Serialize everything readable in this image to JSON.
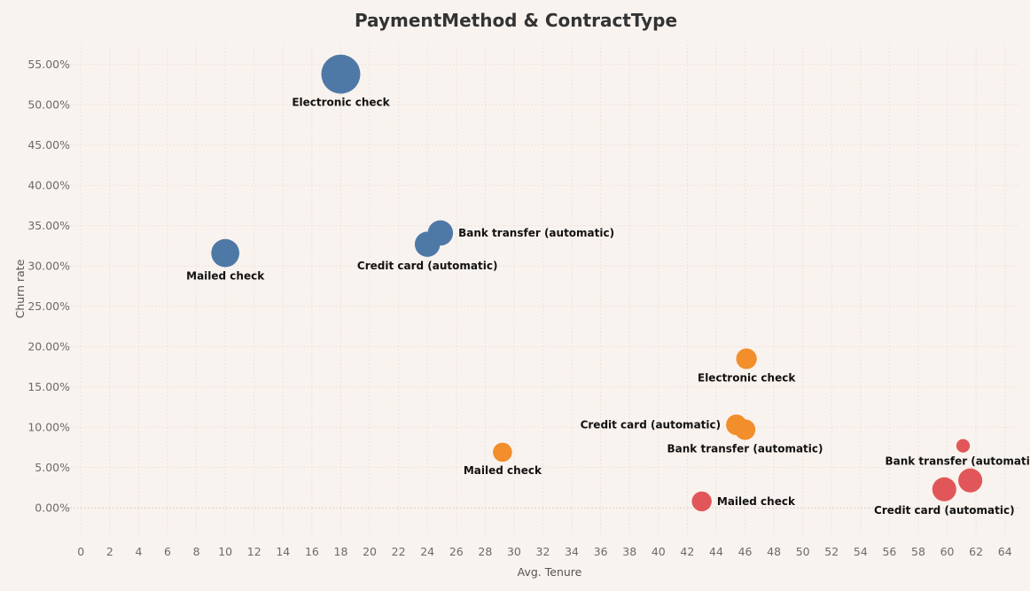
{
  "chart_data": {
    "type": "scatter",
    "title": "PaymentMethod & ContractType",
    "xlabel": "Avg. Tenure",
    "ylabel": "Churn rate",
    "xlim": [
      -1,
      65
    ],
    "ylim": [
      -3.5,
      57.5
    ],
    "x_ticks": [
      0,
      2,
      4,
      6,
      8,
      10,
      12,
      14,
      16,
      18,
      20,
      22,
      24,
      26,
      28,
      30,
      32,
      34,
      36,
      38,
      40,
      42,
      44,
      46,
      48,
      50,
      52,
      54,
      56,
      58,
      60,
      62,
      64
    ],
    "y_ticks": [
      0,
      5,
      10,
      15,
      20,
      25,
      30,
      35,
      40,
      45,
      50,
      55
    ],
    "y_tick_format": "percent_2dp",
    "grid": true,
    "legend": "none",
    "series": [
      {
        "color": "#4e79a7",
        "points": [
          {
            "label": "Electronic check",
            "x": 18.0,
            "y": 53.8,
            "size": 1.0,
            "label_pos": "below"
          },
          {
            "label": "Mailed check",
            "x": 10.0,
            "y": 31.6,
            "size": 0.52,
            "label_pos": "below"
          },
          {
            "label": "Bank transfer (automatic)",
            "x": 24.9,
            "y": 34.1,
            "size": 0.42,
            "label_pos": "right"
          },
          {
            "label": "Credit card (automatic)",
            "x": 24.0,
            "y": 32.7,
            "size": 0.42,
            "label_pos": "below"
          }
        ]
      },
      {
        "color": "#f28e2b",
        "points": [
          {
            "label": "Electronic check",
            "x": 46.1,
            "y": 18.5,
            "size": 0.28,
            "label_pos": "below"
          },
          {
            "label": "Credit card (automatic)",
            "x": 45.4,
            "y": 10.3,
            "size": 0.28,
            "label_pos": "left"
          },
          {
            "label": "Bank transfer (automatic)",
            "x": 46.0,
            "y": 9.7,
            "size": 0.28,
            "label_pos": "below"
          },
          {
            "label": "Mailed check",
            "x": 29.2,
            "y": 6.9,
            "size": 0.24,
            "label_pos": "below"
          }
        ]
      },
      {
        "color": "#e15759",
        "points": [
          {
            "label": "Bank transfer (automatic)",
            "x": 61.1,
            "y": 7.7,
            "size": 0.12,
            "label_pos": "below"
          },
          {
            "label": "Credit card (automatic)",
            "x": 59.8,
            "y": 2.3,
            "size": 0.38,
            "label_pos": "below"
          },
          {
            "label": "",
            "x": 61.6,
            "y": 3.4,
            "size": 0.38,
            "label_pos": "none"
          },
          {
            "label": "Mailed check",
            "x": 43.0,
            "y": 0.8,
            "size": 0.26,
            "label_pos": "right"
          }
        ]
      }
    ]
  }
}
